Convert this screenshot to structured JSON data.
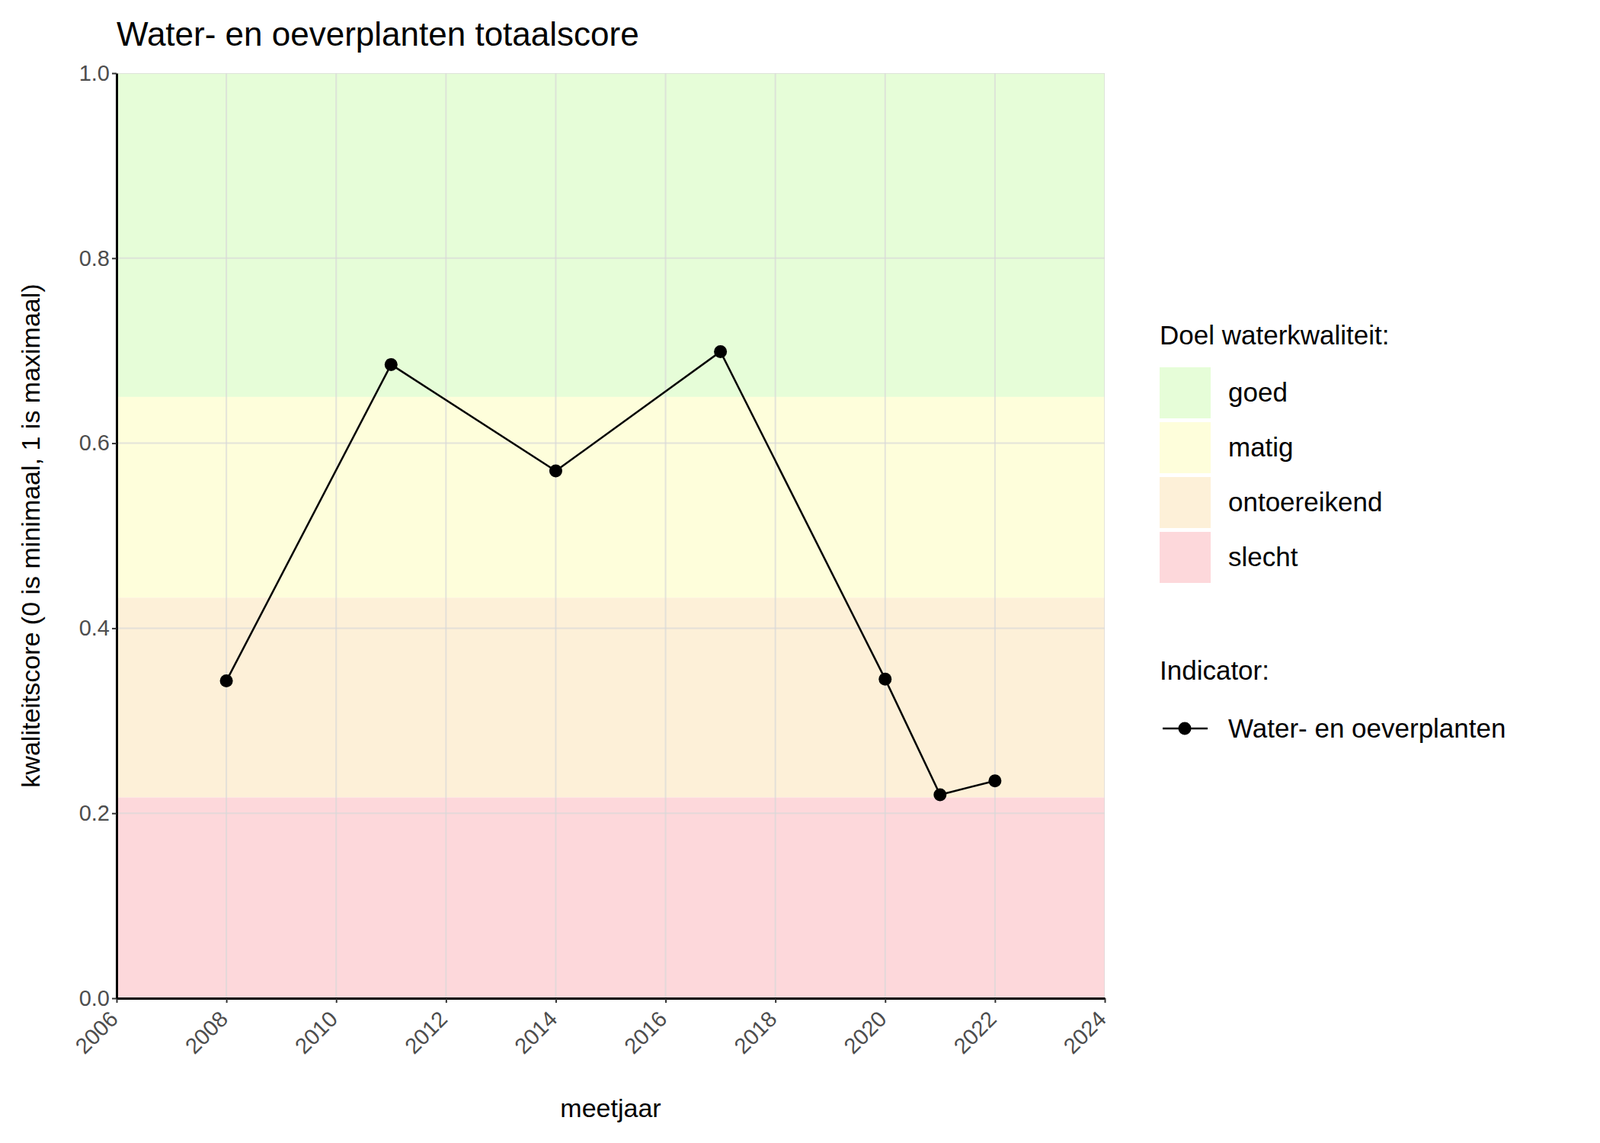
{
  "chart_data": {
    "type": "line",
    "title": "Water- en oeverplanten totaalscore",
    "x_label": "meetjaar",
    "y_label": "kwaliteitscore (0 is minimaal, 1 is maximaal)",
    "x": [
      2008,
      2011,
      2014,
      2017,
      2020,
      2021,
      2022
    ],
    "series": [
      {
        "name": "Water- en oeverplanten",
        "color": "#000000",
        "marker": "circle",
        "line_style": "solid",
        "values": [
          0.343,
          0.685,
          0.57,
          0.699,
          0.345,
          0.22,
          0.235
        ]
      }
    ],
    "bands_title": "Doel waterkwaliteit:",
    "series_title": "Indicator:",
    "bands": [
      {
        "name": "goed",
        "from": 0.65,
        "to": 1.0,
        "color": "#e6fdd8"
      },
      {
        "name": "matig",
        "from": 0.433,
        "to": 0.65,
        "color": "#fefedb"
      },
      {
        "name": "ontoereikend",
        "from": 0.217,
        "to": 0.433,
        "color": "#fdf0d8"
      },
      {
        "name": "slecht",
        "from": 0.0,
        "to": 0.217,
        "color": "#fdd8db"
      }
    ],
    "xlim": [
      2006,
      2024
    ],
    "xticks": [
      2006,
      2008,
      2010,
      2012,
      2014,
      2016,
      2018,
      2020,
      2022,
      2024
    ],
    "ylim": [
      0,
      1
    ],
    "yticks": [
      {
        "value": 0,
        "label": "0.0"
      },
      0.2,
      0.4,
      0.6,
      0.8,
      {
        "value": 1,
        "label": "1.0"
      }
    ],
    "grid": true
  }
}
